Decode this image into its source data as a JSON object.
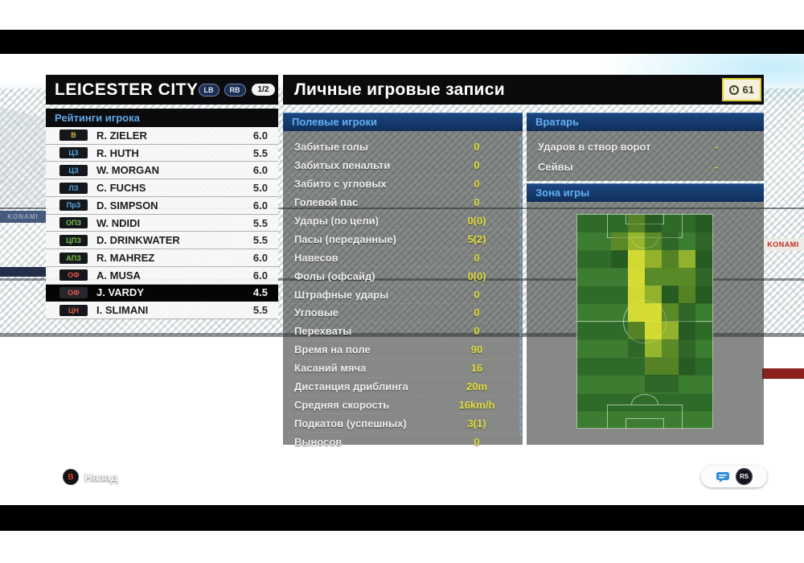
{
  "team_bar": {
    "title": "LEICESTER CITY",
    "lb": "LB",
    "rb": "RB",
    "page": "1/2"
  },
  "title_bar": {
    "title": "Личные игровые записи",
    "clock": "61"
  },
  "ratings_panel": {
    "header": "Рейтинги игрока",
    "players": [
      {
        "pos": "В",
        "color": "#d9b13b",
        "name": "R. ZIELER",
        "rating": "6.0",
        "selected": false
      },
      {
        "pos": "ЦЗ",
        "color": "#56a7e0",
        "name": "R. HUTH",
        "rating": "5.5",
        "selected": false
      },
      {
        "pos": "ЦЗ",
        "color": "#56a7e0",
        "name": "W. MORGAN",
        "rating": "6.0",
        "selected": false
      },
      {
        "pos": "ЛЗ",
        "color": "#56a7e0",
        "name": "C. FUCHS",
        "rating": "5.0",
        "selected": false
      },
      {
        "pos": "ПрЗ",
        "color": "#56a7e0",
        "name": "D. SIMPSON",
        "rating": "6.0",
        "selected": false
      },
      {
        "pos": "ОПЗ",
        "color": "#7cc14e",
        "name": "W. NDIDI",
        "rating": "5.5",
        "selected": false
      },
      {
        "pos": "ЦПЗ",
        "color": "#7cc14e",
        "name": "D. DRINKWATER",
        "rating": "5.5",
        "selected": false
      },
      {
        "pos": "АПЗ",
        "color": "#7cc14e",
        "name": "R. MAHREZ",
        "rating": "6.0",
        "selected": false
      },
      {
        "pos": "ОФ",
        "color": "#e0564a",
        "name": "A. MUSA",
        "rating": "6.0",
        "selected": false
      },
      {
        "pos": "ОФ",
        "color": "#e0564a",
        "name": "J. VARDY",
        "rating": "4.5",
        "selected": true
      },
      {
        "pos": "ЦН",
        "color": "#e0564a",
        "name": "I. SLIMANI",
        "rating": "5.5",
        "selected": false
      }
    ]
  },
  "field_panel": {
    "header": "Полевые игроки",
    "stats": [
      {
        "label": "Забитые голы",
        "value": "0"
      },
      {
        "label": "Забитых пенальти",
        "value": "0"
      },
      {
        "label": "Забито с угловых",
        "value": "0"
      },
      {
        "label": "Голевой пас",
        "value": "0"
      },
      {
        "label": "Удары (по цели)",
        "value": "0(0)"
      },
      {
        "label": "Пасы (переданные)",
        "value": "5(2)"
      },
      {
        "label": "Навесов",
        "value": "0"
      },
      {
        "label": "Фолы (офсайд)",
        "value": "0(0)"
      },
      {
        "label": "Штрафные удары",
        "value": "0"
      },
      {
        "label": "Угловые",
        "value": "0"
      },
      {
        "label": "Перехваты",
        "value": "0"
      },
      {
        "label": "Время на поле",
        "value": "90"
      },
      {
        "label": "Касаний мяча",
        "value": "16"
      },
      {
        "label": "Дистанция дриблинга",
        "value": "20m"
      },
      {
        "label": "Средняя скорость",
        "value": "16km/h"
      },
      {
        "label": "Подкатов (успешных)",
        "value": "3(1)"
      },
      {
        "label": "Выносов",
        "value": "0"
      }
    ]
  },
  "gk_panel": {
    "header": "Вратарь",
    "stats": [
      {
        "label": "Ударов в створ ворот",
        "value": "-"
      },
      {
        "label": "Сейвы",
        "value": "-"
      }
    ]
  },
  "zone_panel": {
    "header": "Зона игры",
    "heatmap": {
      "cols": 8,
      "rows": 12,
      "palette": [
        "transparent",
        "rgba(25,70,25,0.40)",
        "rgba(110,145,35,0.60)",
        "rgba(180,200,45,0.75)",
        "rgba(228,230,52,0.90)"
      ],
      "grid": [
        [
          0,
          0,
          0,
          2,
          1,
          0,
          0,
          1
        ],
        [
          0,
          0,
          2,
          3,
          2,
          1,
          0,
          1
        ],
        [
          0,
          0,
          1,
          4,
          3,
          2,
          3,
          1
        ],
        [
          0,
          0,
          0,
          4,
          2,
          2,
          2,
          1
        ],
        [
          0,
          0,
          0,
          4,
          3,
          1,
          2,
          1
        ],
        [
          0,
          0,
          0,
          4,
          4,
          2,
          1,
          0
        ],
        [
          0,
          0,
          0,
          2,
          4,
          3,
          1,
          0
        ],
        [
          0,
          0,
          0,
          1,
          3,
          2,
          1,
          0
        ],
        [
          0,
          0,
          0,
          0,
          2,
          2,
          1,
          0
        ],
        [
          0,
          0,
          0,
          0,
          1,
          1,
          0,
          0
        ],
        [
          0,
          0,
          0,
          0,
          0,
          0,
          0,
          0
        ],
        [
          0,
          0,
          0,
          0,
          0,
          0,
          0,
          0
        ]
      ]
    }
  },
  "footer": {
    "back_key": "B",
    "back_label": "Назад",
    "stick_key": "RS"
  },
  "ads": {
    "left_banner": "KONAMI",
    "right_banner": "KONAMI"
  },
  "icons": {
    "clock": "clock-icon",
    "chat": "chat-bubble-icon"
  },
  "colors": {
    "accent_blue": "#63aef2",
    "value_yellow": "#e3de3c",
    "clock_border": "#d9cf35"
  }
}
